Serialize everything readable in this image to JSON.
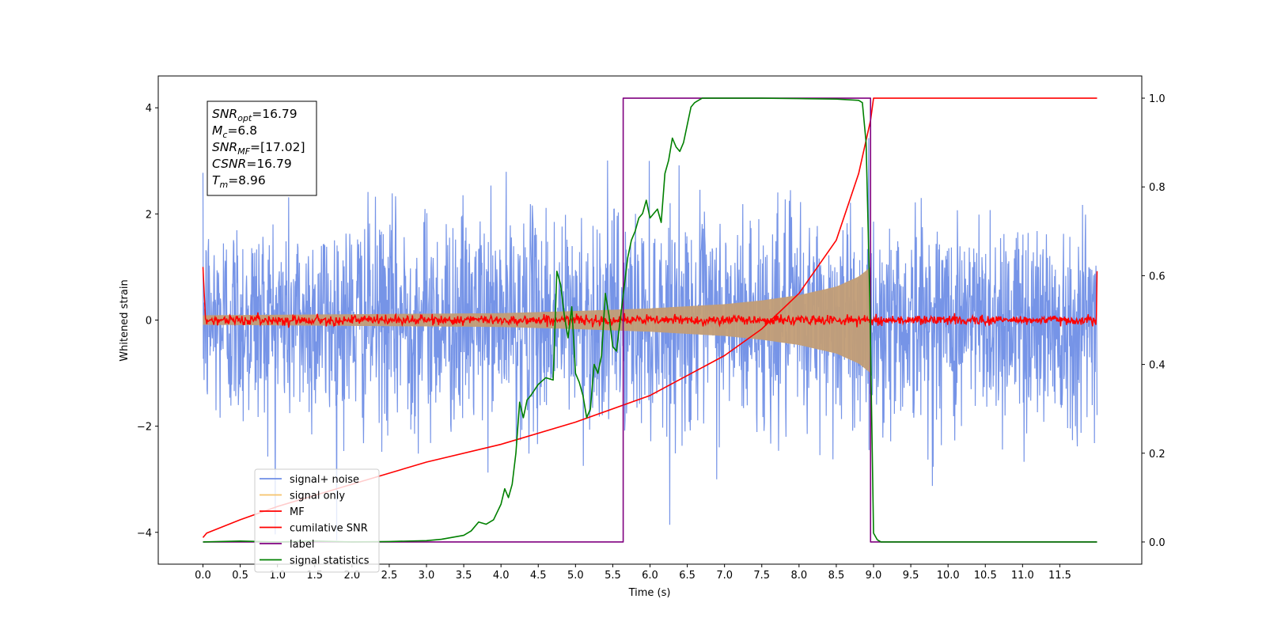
{
  "chart_data": {
    "type": "line",
    "xlabel": "Time (s)",
    "ylabel": "Whitened strain",
    "xlim": [
      -0.6,
      12.6
    ],
    "ylim": [
      -4.6,
      4.6
    ],
    "y2lim": [
      -0.05,
      1.05
    ],
    "x_ticks": [
      "0.0",
      "0.5",
      "1.0",
      "1.5",
      "2.0",
      "2.5",
      "3.0",
      "3.5",
      "4.0",
      "4.5",
      "5.0",
      "5.5",
      "6.0",
      "6.5",
      "7.0",
      "7.5",
      "8.0",
      "8.5",
      "9.0",
      "9.5",
      "10.0",
      "10.5",
      "11.0",
      "11.5"
    ],
    "y_ticks": [
      "−4",
      "−2",
      "0",
      "2",
      "4"
    ],
    "y2_ticks": [
      "0.0",
      "0.2",
      "0.4",
      "0.6",
      "0.8",
      "1.0"
    ],
    "info_box": {
      "lines": [
        {
          "sym": "SNR",
          "sub": "opt",
          "val": "=16.79"
        },
        {
          "sym": "M",
          "sub": "c",
          "val": "=6.8"
        },
        {
          "sym": "SNR",
          "sub": "MF",
          "val": "=[17.02]"
        },
        {
          "sym": "CSNR",
          "sub": "",
          "val": "=16.79"
        },
        {
          "sym": "T",
          "sub": "m",
          "val": "=8.96"
        }
      ]
    },
    "legend": {
      "placement": "lower-left",
      "entries": [
        {
          "label": "signal+ noise",
          "color": "#6f8ee6"
        },
        {
          "label": "signal only",
          "color": "#f5c36b"
        },
        {
          "label": "MF",
          "color": "#ff0000"
        },
        {
          "label": "cumilative SNR",
          "color": "#ff0000"
        },
        {
          "label": "label",
          "color": "#800080"
        },
        {
          "label": "signal statistics",
          "color": "#008000"
        }
      ]
    },
    "series": [
      {
        "name": "signal+ noise",
        "axis": "left",
        "color": "#6f8ee6",
        "x_range": [
          0,
          12
        ],
        "noise_amplitude_std": 1.0,
        "max_abs": 4.15
      },
      {
        "name": "signal only",
        "axis": "left",
        "color": "#c29d76",
        "x_range": [
          0,
          8.96
        ],
        "envelope": {
          "x": [
            0,
            2,
            4,
            5,
            6,
            7,
            7.5,
            8,
            8.5,
            8.8,
            8.96
          ],
          "amp": [
            0.09,
            0.11,
            0.13,
            0.17,
            0.22,
            0.3,
            0.37,
            0.47,
            0.63,
            0.82,
            1.0
          ]
        }
      },
      {
        "name": "MF",
        "axis": "left",
        "color": "#ff0000",
        "x_range": [
          0,
          12
        ],
        "noise_amplitude_std": 0.045,
        "edge_values": [
          1.0,
          0.92
        ]
      },
      {
        "name": "cumilative SNR",
        "axis": "right",
        "color": "#ff0000",
        "x": [
          0.0,
          0.05,
          0.5,
          1.0,
          2.0,
          3.0,
          4.0,
          5.0,
          6.0,
          7.0,
          7.5,
          8.0,
          8.5,
          8.8,
          8.96,
          9.0,
          12.0
        ],
        "y": [
          0.01,
          0.02,
          0.05,
          0.08,
          0.13,
          0.18,
          0.22,
          0.27,
          0.33,
          0.42,
          0.48,
          0.56,
          0.68,
          0.83,
          0.95,
          1.0,
          1.0
        ]
      },
      {
        "name": "label",
        "axis": "right",
        "color": "#800080",
        "x": [
          0.0,
          5.64,
          5.64,
          8.96,
          8.96,
          12.0
        ],
        "y": [
          0,
          0,
          1,
          1,
          0,
          0
        ]
      },
      {
        "name": "signal statistics",
        "axis": "right",
        "color": "#008000",
        "x": [
          0.0,
          0.5,
          1.0,
          1.5,
          2.0,
          2.5,
          3.0,
          3.2,
          3.5,
          3.6,
          3.7,
          3.8,
          3.9,
          4.0,
          4.05,
          4.1,
          4.15,
          4.2,
          4.25,
          4.3,
          4.35,
          4.4,
          4.5,
          4.6,
          4.7,
          4.75,
          4.8,
          4.85,
          4.9,
          4.95,
          5.0,
          5.05,
          5.1,
          5.15,
          5.2,
          5.25,
          5.3,
          5.35,
          5.4,
          5.45,
          5.5,
          5.55,
          5.6,
          5.65,
          5.7,
          5.75,
          5.8,
          5.85,
          5.9,
          5.95,
          6.0,
          6.05,
          6.1,
          6.15,
          6.2,
          6.25,
          6.3,
          6.35,
          6.4,
          6.45,
          6.5,
          6.55,
          6.6,
          6.65,
          6.7,
          6.8,
          7.0,
          7.5,
          8.0,
          8.5,
          8.8,
          8.85,
          8.9,
          8.95,
          9.0,
          9.05,
          9.1,
          9.5,
          12.0
        ],
        "y": [
          0.0,
          0.002,
          0.0,
          0.002,
          0.0,
          0.001,
          0.003,
          0.006,
          0.015,
          0.025,
          0.045,
          0.04,
          0.05,
          0.085,
          0.12,
          0.1,
          0.13,
          0.2,
          0.315,
          0.28,
          0.32,
          0.33,
          0.355,
          0.37,
          0.365,
          0.61,
          0.58,
          0.51,
          0.46,
          0.53,
          0.38,
          0.36,
          0.33,
          0.28,
          0.3,
          0.4,
          0.38,
          0.42,
          0.56,
          0.51,
          0.44,
          0.43,
          0.5,
          0.57,
          0.64,
          0.68,
          0.7,
          0.73,
          0.74,
          0.77,
          0.73,
          0.74,
          0.75,
          0.72,
          0.83,
          0.86,
          0.91,
          0.89,
          0.88,
          0.9,
          0.94,
          0.98,
          0.99,
          0.995,
          1.0,
          1.0,
          1.0,
          1.0,
          0.999,
          0.998,
          0.995,
          0.99,
          0.9,
          0.55,
          0.02,
          0.005,
          0.0,
          0.0,
          0.0
        ]
      }
    ]
  }
}
